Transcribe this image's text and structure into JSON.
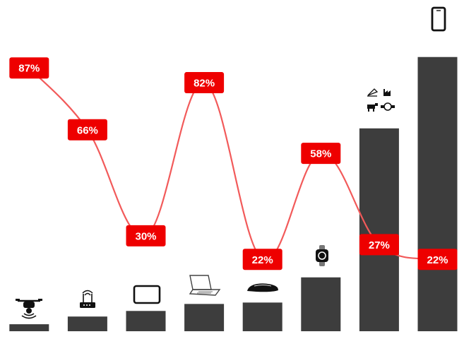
{
  "chart_data": {
    "type": "bar",
    "categories": [
      "drone",
      "router",
      "tablet",
      "laptop",
      "car",
      "smartwatch",
      "industry",
      "smartphone"
    ],
    "icons": [
      "drone-icon",
      "router-icon",
      "tablet-icon",
      "laptop-icon",
      "car-icon",
      "smartwatch-icon",
      "industry-icons",
      "smartphone-icon"
    ],
    "values": [
      10,
      21,
      29,
      39,
      41,
      77,
      290,
      392
    ],
    "ylim": [
      0,
      420
    ],
    "line_series": {
      "values": [
        87,
        66,
        30,
        82,
        22,
        58,
        27,
        22
      ],
      "labels": [
        "87%",
        "66%",
        "30%",
        "82%",
        "22%",
        "58%",
        "27%",
        "22%"
      ],
      "ylim": [
        0,
        100
      ]
    },
    "grid": false,
    "colors": {
      "bar": "#3d3d3d",
      "line": "#f25a5a",
      "label_bg": "#ee0000",
      "label_text": "#ffffff"
    }
  }
}
